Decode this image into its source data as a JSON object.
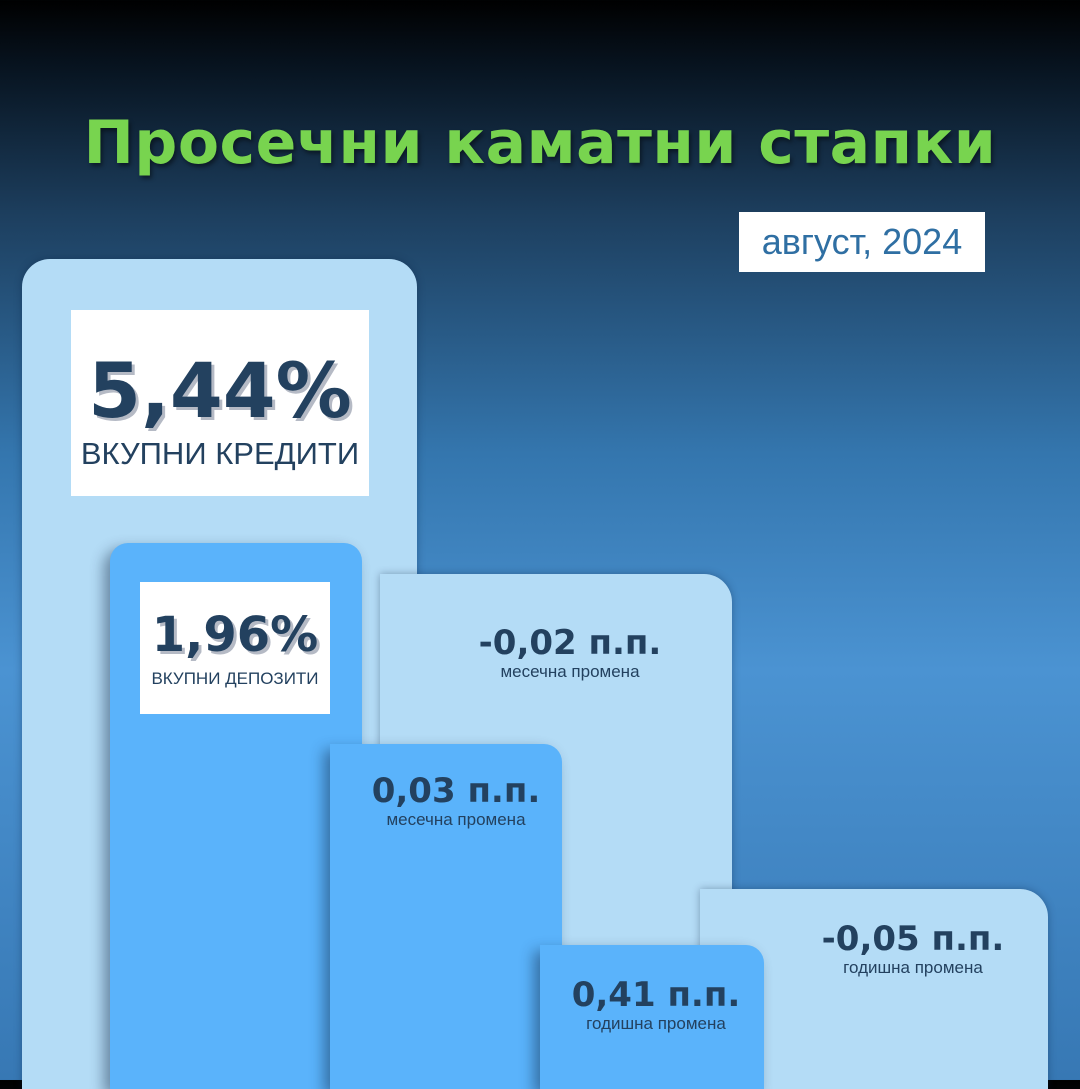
{
  "title": "Просечни каматни стапки",
  "date": "август, 2024",
  "credits": {
    "value": "5,44%",
    "label": "ВКУПНИ КРЕДИТИ",
    "monthly_change": {
      "value": "-0,02 п.п.",
      "label": "месечна промена"
    },
    "annual_change": {
      "value": "-0,05 п.п.",
      "label": "годишна промена"
    }
  },
  "deposits": {
    "value": "1,96%",
    "label": "ВКУПНИ ДЕПОЗИТИ",
    "monthly_change": {
      "value": "0,03 п.п.",
      "label": "месечна промена"
    },
    "annual_change": {
      "value": "0,41 п.п.",
      "label": "годишна промена"
    }
  },
  "colors": {
    "title": "#78d44f",
    "credits_steps": "#b4dcf6",
    "deposits_steps": "#5ab3fb",
    "text_dark": "#23415f",
    "date_text": "#2f6fa3"
  }
}
